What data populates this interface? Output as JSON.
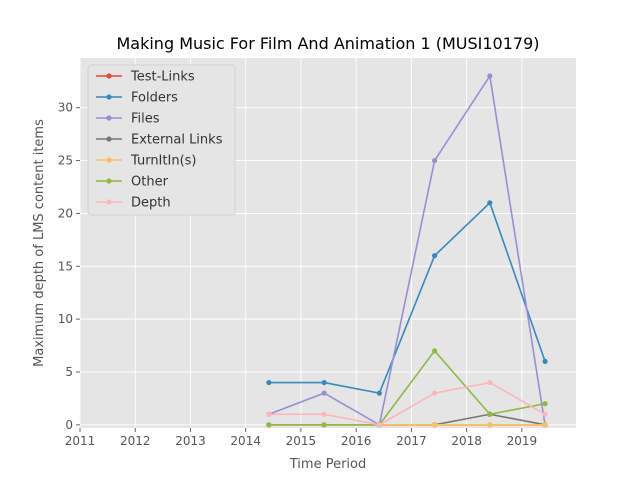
{
  "chart_data": {
    "type": "line",
    "title": "Making Music For Film And Animation 1 (MUSI10179)",
    "xlabel": "Time Period",
    "ylabel": "Maximum depth of LMS content items",
    "x_ticks": [
      "2011",
      "2012",
      "2013",
      "2014",
      "2015",
      "2016",
      "2017",
      "2018",
      "2019"
    ],
    "y_ticks": [
      "0",
      "5",
      "10",
      "15",
      "20",
      "25",
      "30"
    ],
    "xlim": [
      2011.0,
      2019.98
    ],
    "ylim": [
      -0.3,
      34.7
    ],
    "grid": true,
    "legend_position": "top-left",
    "background": "#e5e5e5",
    "x": [
      2014.42,
      2015.42,
      2016.42,
      2017.42,
      2018.42,
      2019.42
    ],
    "series": [
      {
        "name": "Test-Links",
        "color": "#e24a33",
        "values": [
          0,
          0,
          0,
          0,
          0,
          0
        ]
      },
      {
        "name": "Folders",
        "color": "#348abd",
        "values": [
          4,
          4,
          3,
          16,
          21,
          6
        ]
      },
      {
        "name": "Files",
        "color": "#988ed5",
        "values": [
          1,
          3,
          0,
          25,
          33,
          0
        ]
      },
      {
        "name": "External Links",
        "color": "#777777",
        "values": [
          null,
          null,
          0,
          0,
          1,
          0
        ]
      },
      {
        "name": "TurnItIn(s)",
        "color": "#fbc15e",
        "values": [
          null,
          null,
          0,
          0,
          0,
          0
        ]
      },
      {
        "name": "Other",
        "color": "#8eba42",
        "values": [
          0,
          0,
          0,
          7,
          1,
          2
        ]
      },
      {
        "name": "Depth",
        "color": "#ffb5b8",
        "values": [
          1,
          1,
          0,
          3,
          4,
          1
        ]
      }
    ]
  }
}
